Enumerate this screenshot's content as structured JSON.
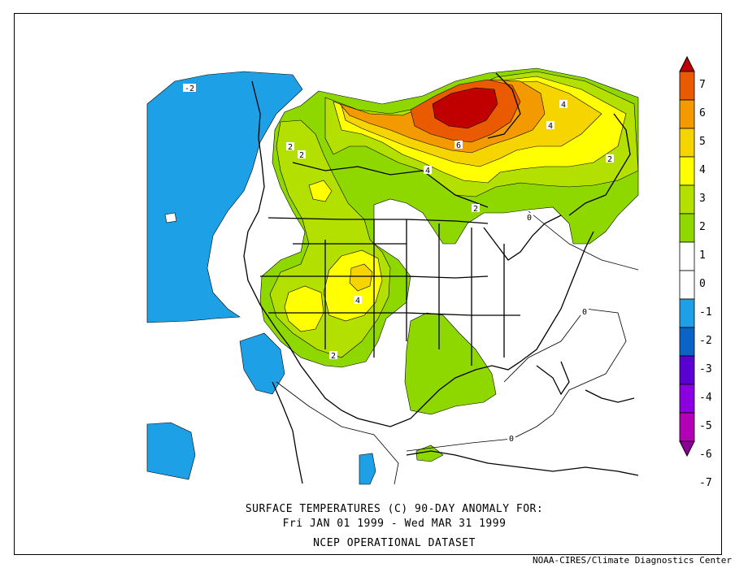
{
  "title": {
    "line1": "SURFACE TEMPERATURES (C)   90-DAY ANOMALY FOR:",
    "line2": "Fri JAN 01 1999 - Wed MAR 31 1999",
    "line3": "NCEP OPERATIONAL DATASET"
  },
  "credit": "NOAA-CIRES/Climate Diagnostics Center",
  "legend": {
    "levels": [
      {
        "label": "7",
        "color": "#c00000"
      },
      {
        "label": "6",
        "color": "#ea5a00"
      },
      {
        "label": "5",
        "color": "#f39a00"
      },
      {
        "label": "4",
        "color": "#f6d400"
      },
      {
        "label": "3",
        "color": "#ffff00"
      },
      {
        "label": "2",
        "color": "#b4e000"
      },
      {
        "label": "1",
        "color": "#8ed800"
      },
      {
        "label": "0",
        "color": "#ffffff"
      },
      {
        "label": "-1",
        "color": "#ffffff"
      },
      {
        "label": "-2",
        "color": "#1ea0e6"
      },
      {
        "label": "-3",
        "color": "#0a64c8"
      },
      {
        "label": "-4",
        "color": "#5a00d2"
      },
      {
        "label": "-5",
        "color": "#8a00e0"
      },
      {
        "label": "-6",
        "color": "#b400b4"
      },
      {
        "label": "-7",
        "color": "#8c0096"
      }
    ]
  },
  "contour_labels": [
    "-2",
    "2",
    "2",
    "4",
    "6",
    "4",
    "4",
    "2",
    "2",
    "0",
    "4",
    "2",
    "0",
    "0"
  ]
}
